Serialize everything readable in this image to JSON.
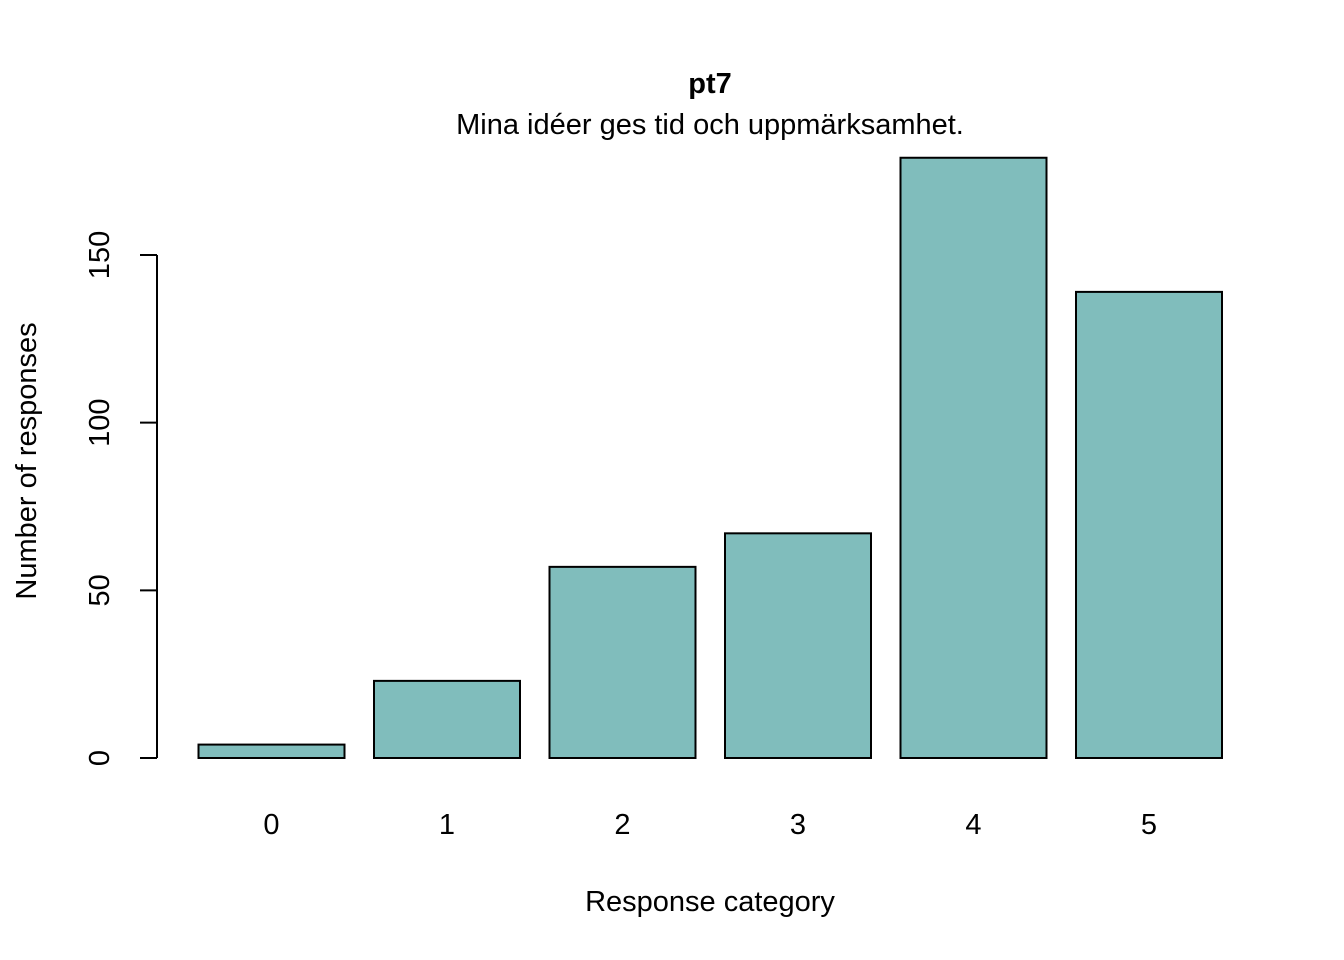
{
  "chart_data": {
    "type": "bar",
    "title": "pt7",
    "subtitle": "Mina idéer ges tid och uppmärksamhet.",
    "xlabel": "Response category",
    "ylabel": "Number of responses",
    "categories": [
      "0",
      "1",
      "2",
      "3",
      "4",
      "5"
    ],
    "values": [
      4,
      23,
      57,
      67,
      179,
      139
    ],
    "ylim": [
      0,
      179
    ],
    "yticks": [
      0,
      50,
      100,
      150
    ],
    "ytick_labels": [
      "0",
      "50",
      "100",
      "150"
    ],
    "grid": false,
    "bar_color": "#80bdbc",
    "bar_edge_color": "#000000"
  }
}
